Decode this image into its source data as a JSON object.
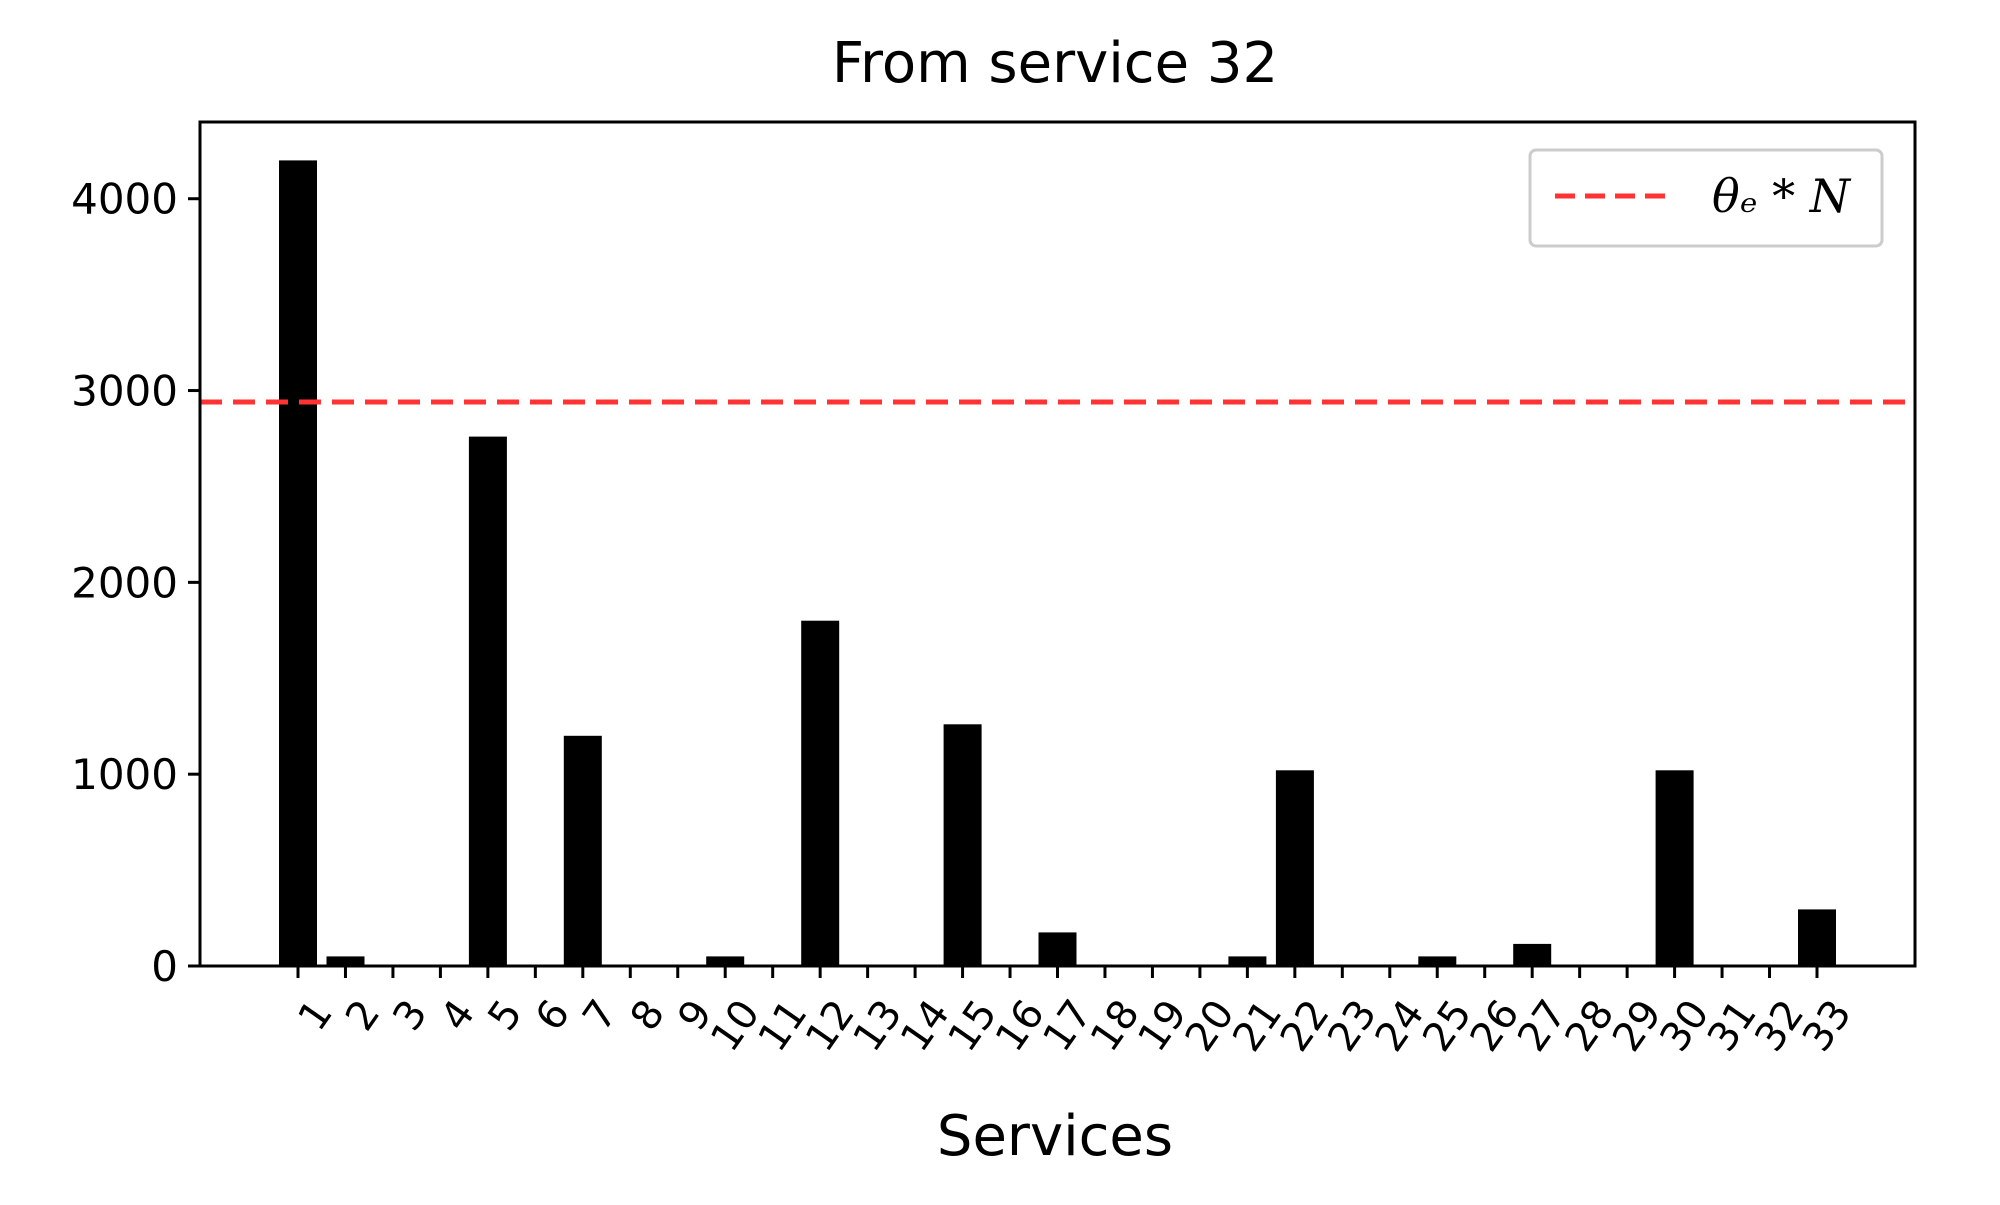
{
  "chart_data": {
    "type": "bar",
    "title": "From service 32",
    "xlabel": "Services",
    "ylabel": "",
    "categories": [
      "1",
      "2",
      "3",
      "4",
      "5",
      "6",
      "7",
      "8",
      "9",
      "10",
      "11",
      "12",
      "13",
      "14",
      "15",
      "16",
      "17",
      "18",
      "19",
      "20",
      "21",
      "22",
      "23",
      "24",
      "25",
      "26",
      "27",
      "28",
      "29",
      "30",
      "31",
      "32",
      "33"
    ],
    "values": [
      4200,
      50,
      0,
      0,
      2760,
      0,
      1200,
      0,
      0,
      50,
      0,
      1800,
      0,
      0,
      1260,
      0,
      175,
      0,
      0,
      0,
      50,
      1020,
      0,
      0,
      50,
      0,
      115,
      0,
      0,
      1020,
      0,
      0,
      295
    ],
    "ylim": [
      0,
      4400
    ],
    "yticks": [
      0,
      1000,
      2000,
      3000,
      4000
    ],
    "bar_color": "#000000",
    "threshold": {
      "value": 2940,
      "color": "#ff3333",
      "style": "dashed",
      "legend_label": "θₑ * N"
    },
    "legend_placement": "top-right",
    "grid": false
  }
}
